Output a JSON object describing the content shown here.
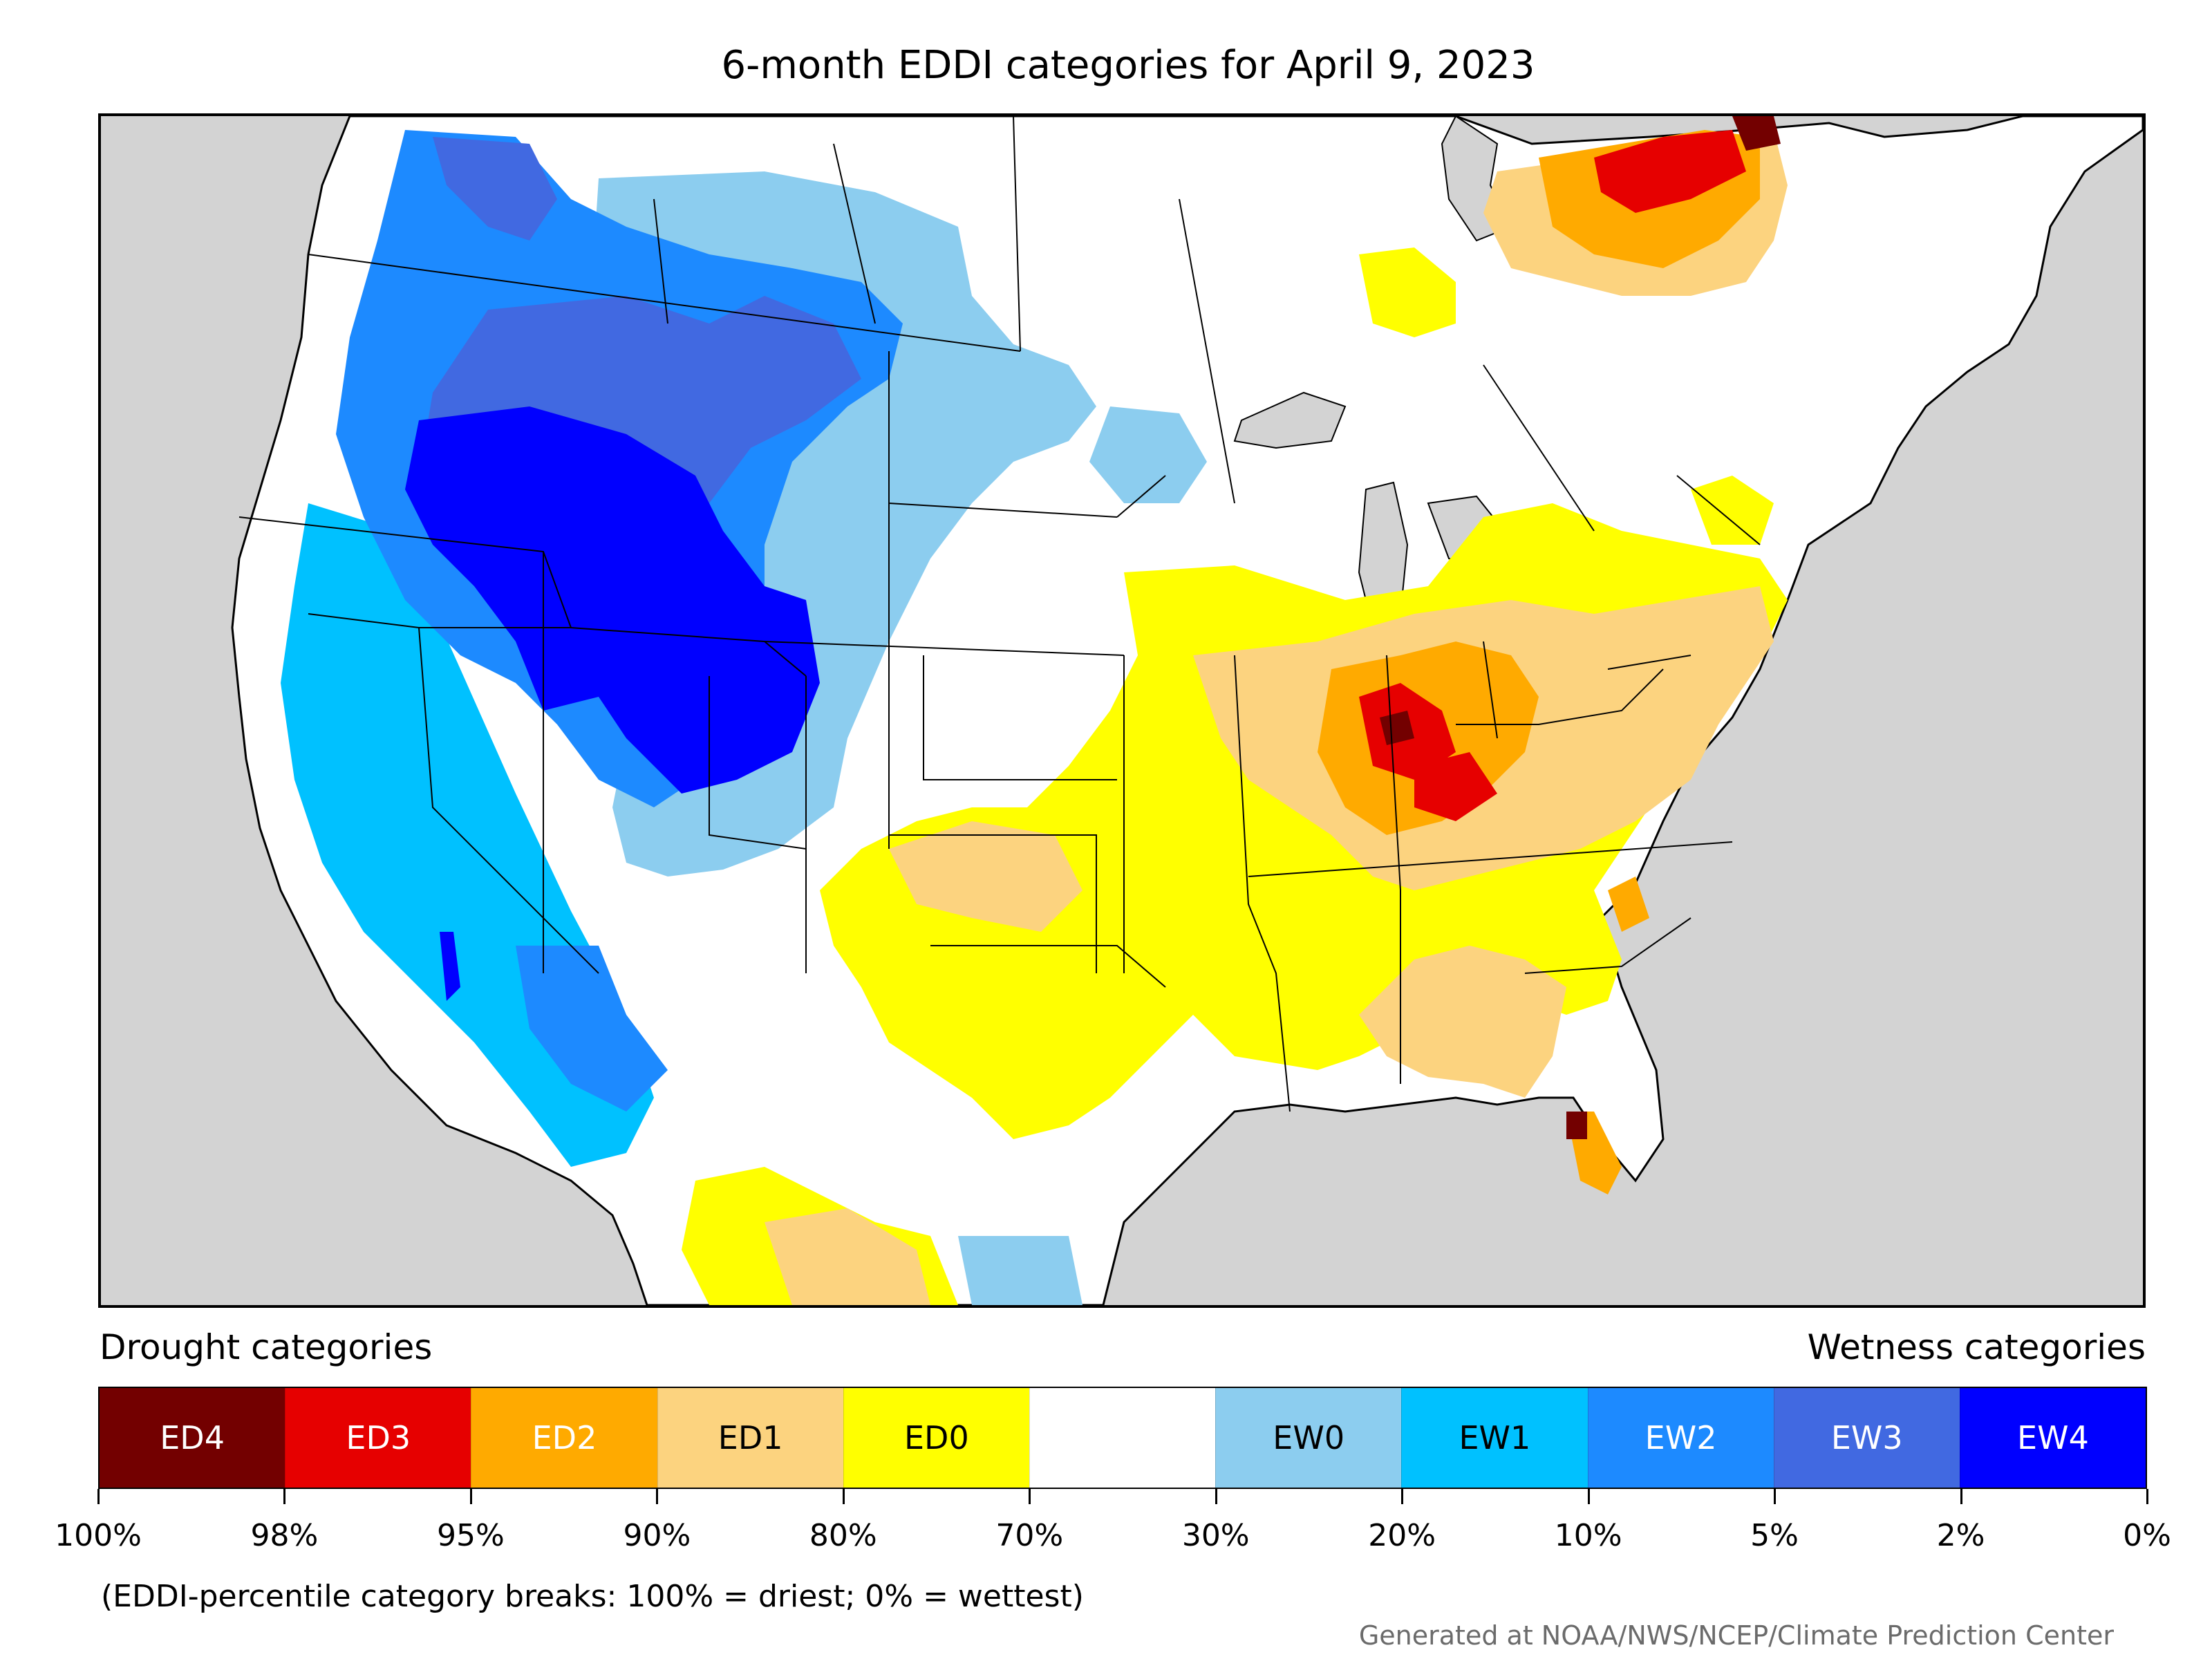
{
  "title": "6-month EDDI categories for April 9, 2023",
  "legend": {
    "drought_heading": "Drought categories",
    "wetness_heading": "Wetness categories",
    "categories": [
      {
        "label": "ED4",
        "color": "#730000",
        "text_color": "#ffffff"
      },
      {
        "label": "ED3",
        "color": "#e60000",
        "text_color": "#ffffff"
      },
      {
        "label": "ED2",
        "color": "#ffaa00",
        "text_color": "#ffffff"
      },
      {
        "label": "ED1",
        "color": "#fcd37f",
        "text_color": "#000000"
      },
      {
        "label": "ED0",
        "color": "#ffff00",
        "text_color": "#000000"
      },
      {
        "label": "",
        "color": "#ffffff",
        "text_color": "#000000"
      },
      {
        "label": "EW0",
        "color": "#8ccdef",
        "text_color": "#000000"
      },
      {
        "label": "EW1",
        "color": "#00c1ff",
        "text_color": "#000000"
      },
      {
        "label": "EW2",
        "color": "#1d8aff",
        "text_color": "#ffffff"
      },
      {
        "label": "EW3",
        "color": "#4169e1",
        "text_color": "#ffffff"
      },
      {
        "label": "EW4",
        "color": "#0000ff",
        "text_color": "#ffffff"
      }
    ],
    "ticks": [
      "100%",
      "98%",
      "95%",
      "90%",
      "80%",
      "70%",
      "30%",
      "20%",
      "10%",
      "5%",
      "2%",
      "0%"
    ]
  },
  "note": "(EDDI-percentile category breaks: 100% = driest; 0% = wettest)",
  "credit": "Generated at NOAA/NWS/NCEP/Climate Prediction Center",
  "map": {
    "background_color": "#d3d3d3",
    "regions": [
      {
        "name": "pacific-northwest",
        "category": "EW3"
      },
      {
        "name": "great-basin",
        "category": "EW4"
      },
      {
        "name": "northern-rockies",
        "category": "EW2"
      },
      {
        "name": "california",
        "category": "EW1"
      },
      {
        "name": "northern-plains",
        "category": "EW0"
      },
      {
        "name": "southern-plains",
        "category": "ED0"
      },
      {
        "name": "ohio-valley",
        "category": "ED2"
      },
      {
        "name": "kentucky-indiana",
        "category": "ED3"
      },
      {
        "name": "quebec",
        "category": "ED2"
      },
      {
        "name": "north-florida",
        "category": "ED4"
      },
      {
        "name": "southeast",
        "category": "ED1"
      },
      {
        "name": "west-texas-mexico",
        "category": "ED1"
      }
    ]
  }
}
